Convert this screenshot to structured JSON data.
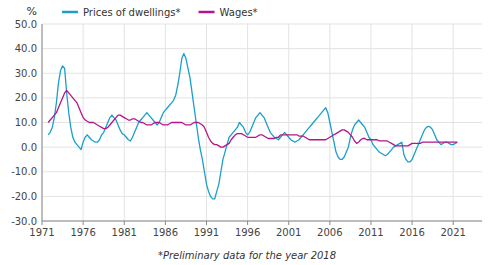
{
  "chart_data": {
    "type": "line",
    "ylabel": "%",
    "footnote": "*Preliminary data for the year 2018",
    "grid": true,
    "legend": "upper left",
    "xlim": [
      1971,
      2024.5
    ],
    "xticks": [
      1971,
      1976,
      1981,
      1986,
      1991,
      1996,
      2001,
      2006,
      2011,
      2016,
      2021
    ],
    "ylim": [
      -30.0,
      50.0
    ],
    "yticks": [
      {
        "value": -30.0,
        "label": "-30.0"
      },
      {
        "value": -20.0,
        "label": "-20.0"
      },
      {
        "value": -10.0,
        "label": "-10.0"
      },
      {
        "value": 0.0,
        "label": "0.0"
      },
      {
        "value": 10.0,
        "label": "10.0"
      },
      {
        "value": 20.0,
        "label": "20.0"
      },
      {
        "value": 30.0,
        "label": "30.0"
      },
      {
        "value": 40.0,
        "label": "40.0"
      },
      {
        "value": 50.0,
        "label": "50.0"
      }
    ],
    "x": [
      1971.75,
      1972,
      1972.25,
      1972.5,
      1972.75,
      1973,
      1973.25,
      1973.5,
      1973.75,
      1974,
      1974.25,
      1974.5,
      1974.75,
      1975,
      1975.25,
      1975.5,
      1975.75,
      1976,
      1976.25,
      1976.5,
      1976.75,
      1977,
      1977.25,
      1977.5,
      1977.75,
      1978,
      1978.25,
      1978.5,
      1978.75,
      1979,
      1979.25,
      1979.5,
      1979.75,
      1980,
      1980.25,
      1980.5,
      1980.75,
      1981,
      1981.25,
      1981.5,
      1981.75,
      1982,
      1982.25,
      1982.5,
      1982.75,
      1983,
      1983.25,
      1983.5,
      1983.75,
      1984,
      1984.25,
      1984.5,
      1984.75,
      1985,
      1985.25,
      1985.5,
      1985.75,
      1986,
      1986.25,
      1986.5,
      1986.75,
      1987,
      1987.25,
      1987.5,
      1987.75,
      1988,
      1988.25,
      1988.5,
      1988.75,
      1989,
      1989.25,
      1989.5,
      1989.75,
      1990,
      1990.25,
      1990.5,
      1990.75,
      1991,
      1991.25,
      1991.5,
      1991.75,
      1992,
      1992.25,
      1992.5,
      1992.75,
      1993,
      1993.25,
      1993.5,
      1993.75,
      1994,
      1994.25,
      1994.5,
      1994.75,
      1995,
      1995.25,
      1995.5,
      1995.75,
      1996,
      1996.25,
      1996.5,
      1996.75,
      1997,
      1997.25,
      1997.5,
      1997.75,
      1998,
      1998.25,
      1998.5,
      1998.75,
      1999,
      1999.25,
      1999.5,
      1999.75,
      2000,
      2000.25,
      2000.5,
      2000.75,
      2001,
      2001.25,
      2001.5,
      2001.75,
      2002,
      2002.25,
      2002.5,
      2002.75,
      2003,
      2003.25,
      2003.5,
      2003.75,
      2004,
      2004.25,
      2004.5,
      2004.75,
      2005,
      2005.25,
      2005.5,
      2005.75,
      2006,
      2006.25,
      2006.5,
      2006.75,
      2007,
      2007.25,
      2007.5,
      2007.75,
      2008,
      2008.25,
      2008.5,
      2008.75,
      2009,
      2009.25,
      2009.5,
      2009.75,
      2010,
      2010.25,
      2010.5,
      2010.75,
      2011,
      2011.25,
      2011.5,
      2011.75,
      2012,
      2012.25,
      2012.5,
      2012.75,
      2013,
      2013.25,
      2013.5,
      2013.75,
      2014,
      2014.25,
      2014.5,
      2014.75,
      2015,
      2015.25,
      2015.5,
      2015.75,
      2016,
      2016.25,
      2016.5,
      2016.75,
      2017,
      2017.25,
      2017.5,
      2017.75,
      2018,
      2018.25,
      2018.5,
      2018.75,
      2019,
      2019.25,
      2019.5,
      2019.75,
      2020,
      2020.25,
      2020.5,
      2020.75,
      2021,
      2021.25,
      2021.5
    ],
    "series": [
      {
        "name": "Prices of dwellings*",
        "color": "#1a9fca",
        "values": [
          5.0,
          6.0,
          8.0,
          12.0,
          18.0,
          26.0,
          31.0,
          33.0,
          32.0,
          22.0,
          14.0,
          8.0,
          4.0,
          2.0,
          1.0,
          0.0,
          -1.0,
          2.0,
          4.0,
          5.0,
          4.0,
          3.0,
          2.5,
          2.0,
          2.0,
          3.0,
          5.0,
          6.0,
          8.0,
          10.0,
          12.0,
          13.0,
          12.0,
          11.0,
          9.0,
          7.0,
          5.5,
          5.0,
          4.0,
          3.0,
          2.5,
          4.0,
          6.0,
          8.0,
          10.0,
          11.0,
          12.0,
          13.0,
          14.0,
          13.0,
          12.0,
          11.0,
          10.0,
          9.0,
          10.0,
          12.0,
          14.0,
          15.0,
          16.0,
          17.0,
          18.0,
          19.0,
          21.0,
          25.0,
          30.0,
          36.0,
          38.0,
          36.0,
          32.0,
          28.0,
          22.0,
          16.0,
          10.0,
          4.0,
          -1.0,
          -5.0,
          -10.0,
          -15.0,
          -18.0,
          -20.0,
          -21.0,
          -21.0,
          -18.0,
          -15.0,
          -10.0,
          -5.0,
          -2.0,
          1.0,
          4.0,
          5.0,
          6.0,
          7.0,
          8.0,
          10.0,
          9.0,
          8.0,
          6.0,
          5.0,
          6.0,
          8.0,
          10.0,
          12.0,
          13.0,
          14.0,
          13.0,
          12.0,
          10.0,
          8.0,
          6.0,
          5.0,
          4.0,
          3.5,
          3.0,
          4.0,
          5.0,
          6.0,
          5.0,
          4.0,
          3.0,
          2.5,
          2.0,
          2.5,
          3.0,
          4.0,
          5.0,
          6.0,
          7.0,
          8.0,
          9.0,
          10.0,
          11.0,
          12.0,
          13.0,
          14.0,
          15.0,
          16.0,
          14.0,
          10.0,
          6.0,
          2.0,
          -2.0,
          -4.0,
          -5.0,
          -5.0,
          -4.0,
          -2.0,
          0.0,
          4.0,
          7.0,
          9.0,
          10.0,
          11.0,
          10.0,
          9.0,
          8.0,
          6.0,
          4.0,
          3.0,
          1.0,
          0.0,
          -1.0,
          -2.0,
          -2.5,
          -3.0,
          -3.5,
          -3.0,
          -2.0,
          -1.0,
          0.0,
          0.5,
          1.0,
          1.5,
          2.0,
          -3.0,
          -5.0,
          -6.0,
          -6.0,
          -5.0,
          -3.0,
          -1.0,
          1.0,
          3.0,
          5.0,
          7.0,
          8.0,
          8.5,
          8.0,
          7.0,
          5.0,
          3.0,
          2.0,
          1.0,
          1.5,
          2.0,
          2.0,
          1.5,
          1.0,
          1.0,
          1.5,
          2.0
        ]
      },
      {
        "name": "Wages*",
        "color": "#b5158a",
        "values": [
          10.0,
          11.0,
          12.0,
          13.0,
          14.0,
          16.0,
          18.0,
          20.0,
          22.0,
          23.0,
          22.0,
          21.0,
          20.0,
          19.0,
          18.0,
          16.0,
          14.0,
          12.0,
          11.0,
          10.5,
          10.0,
          10.0,
          10.0,
          9.5,
          9.0,
          8.5,
          8.0,
          7.5,
          7.5,
          8.0,
          9.0,
          10.0,
          11.0,
          12.0,
          13.0,
          13.0,
          12.5,
          12.0,
          11.5,
          11.0,
          11.0,
          11.5,
          11.5,
          11.0,
          10.5,
          10.0,
          10.0,
          9.5,
          9.0,
          9.0,
          9.0,
          9.5,
          10.0,
          10.0,
          10.0,
          9.5,
          9.0,
          9.0,
          9.0,
          9.5,
          10.0,
          10.0,
          10.0,
          10.0,
          10.0,
          10.0,
          9.5,
          9.0,
          9.0,
          9.0,
          9.5,
          10.0,
          10.0,
          10.0,
          9.5,
          9.0,
          8.0,
          6.0,
          4.0,
          2.5,
          1.5,
          1.0,
          1.0,
          0.5,
          0.0,
          0.0,
          0.5,
          1.0,
          1.5,
          3.0,
          4.0,
          5.0,
          5.5,
          5.5,
          5.5,
          5.0,
          4.5,
          4.0,
          4.0,
          4.0,
          4.0,
          4.0,
          4.5,
          5.0,
          5.0,
          4.5,
          4.0,
          3.5,
          3.5,
          3.5,
          3.5,
          4.0,
          4.0,
          5.0,
          5.0,
          5.0,
          5.0,
          5.0,
          5.0,
          5.0,
          5.0,
          5.0,
          4.5,
          4.5,
          4.5,
          4.0,
          3.5,
          3.0,
          3.0,
          3.0,
          3.0,
          3.0,
          3.0,
          3.0,
          3.0,
          3.0,
          3.5,
          4.0,
          4.5,
          5.0,
          5.5,
          6.0,
          6.5,
          7.0,
          7.0,
          6.5,
          6.0,
          5.0,
          4.0,
          2.5,
          1.5,
          2.0,
          3.0,
          3.5,
          3.5,
          3.0,
          3.0,
          3.0,
          3.0,
          3.0,
          3.0,
          2.5,
          2.5,
          2.5,
          2.5,
          2.5,
          2.0,
          1.5,
          1.0,
          0.5,
          0.5,
          0.5,
          0.5,
          0.5,
          0.5,
          0.5,
          1.0,
          1.5,
          1.5,
          1.5,
          1.5,
          1.5,
          2.0,
          2.0,
          2.0,
          2.0,
          2.0,
          2.0,
          2.0,
          2.0,
          2.0,
          2.0,
          2.0,
          2.0,
          2.0,
          2.0,
          2.0,
          2.0,
          2.0,
          2.0
        ]
      }
    ]
  }
}
